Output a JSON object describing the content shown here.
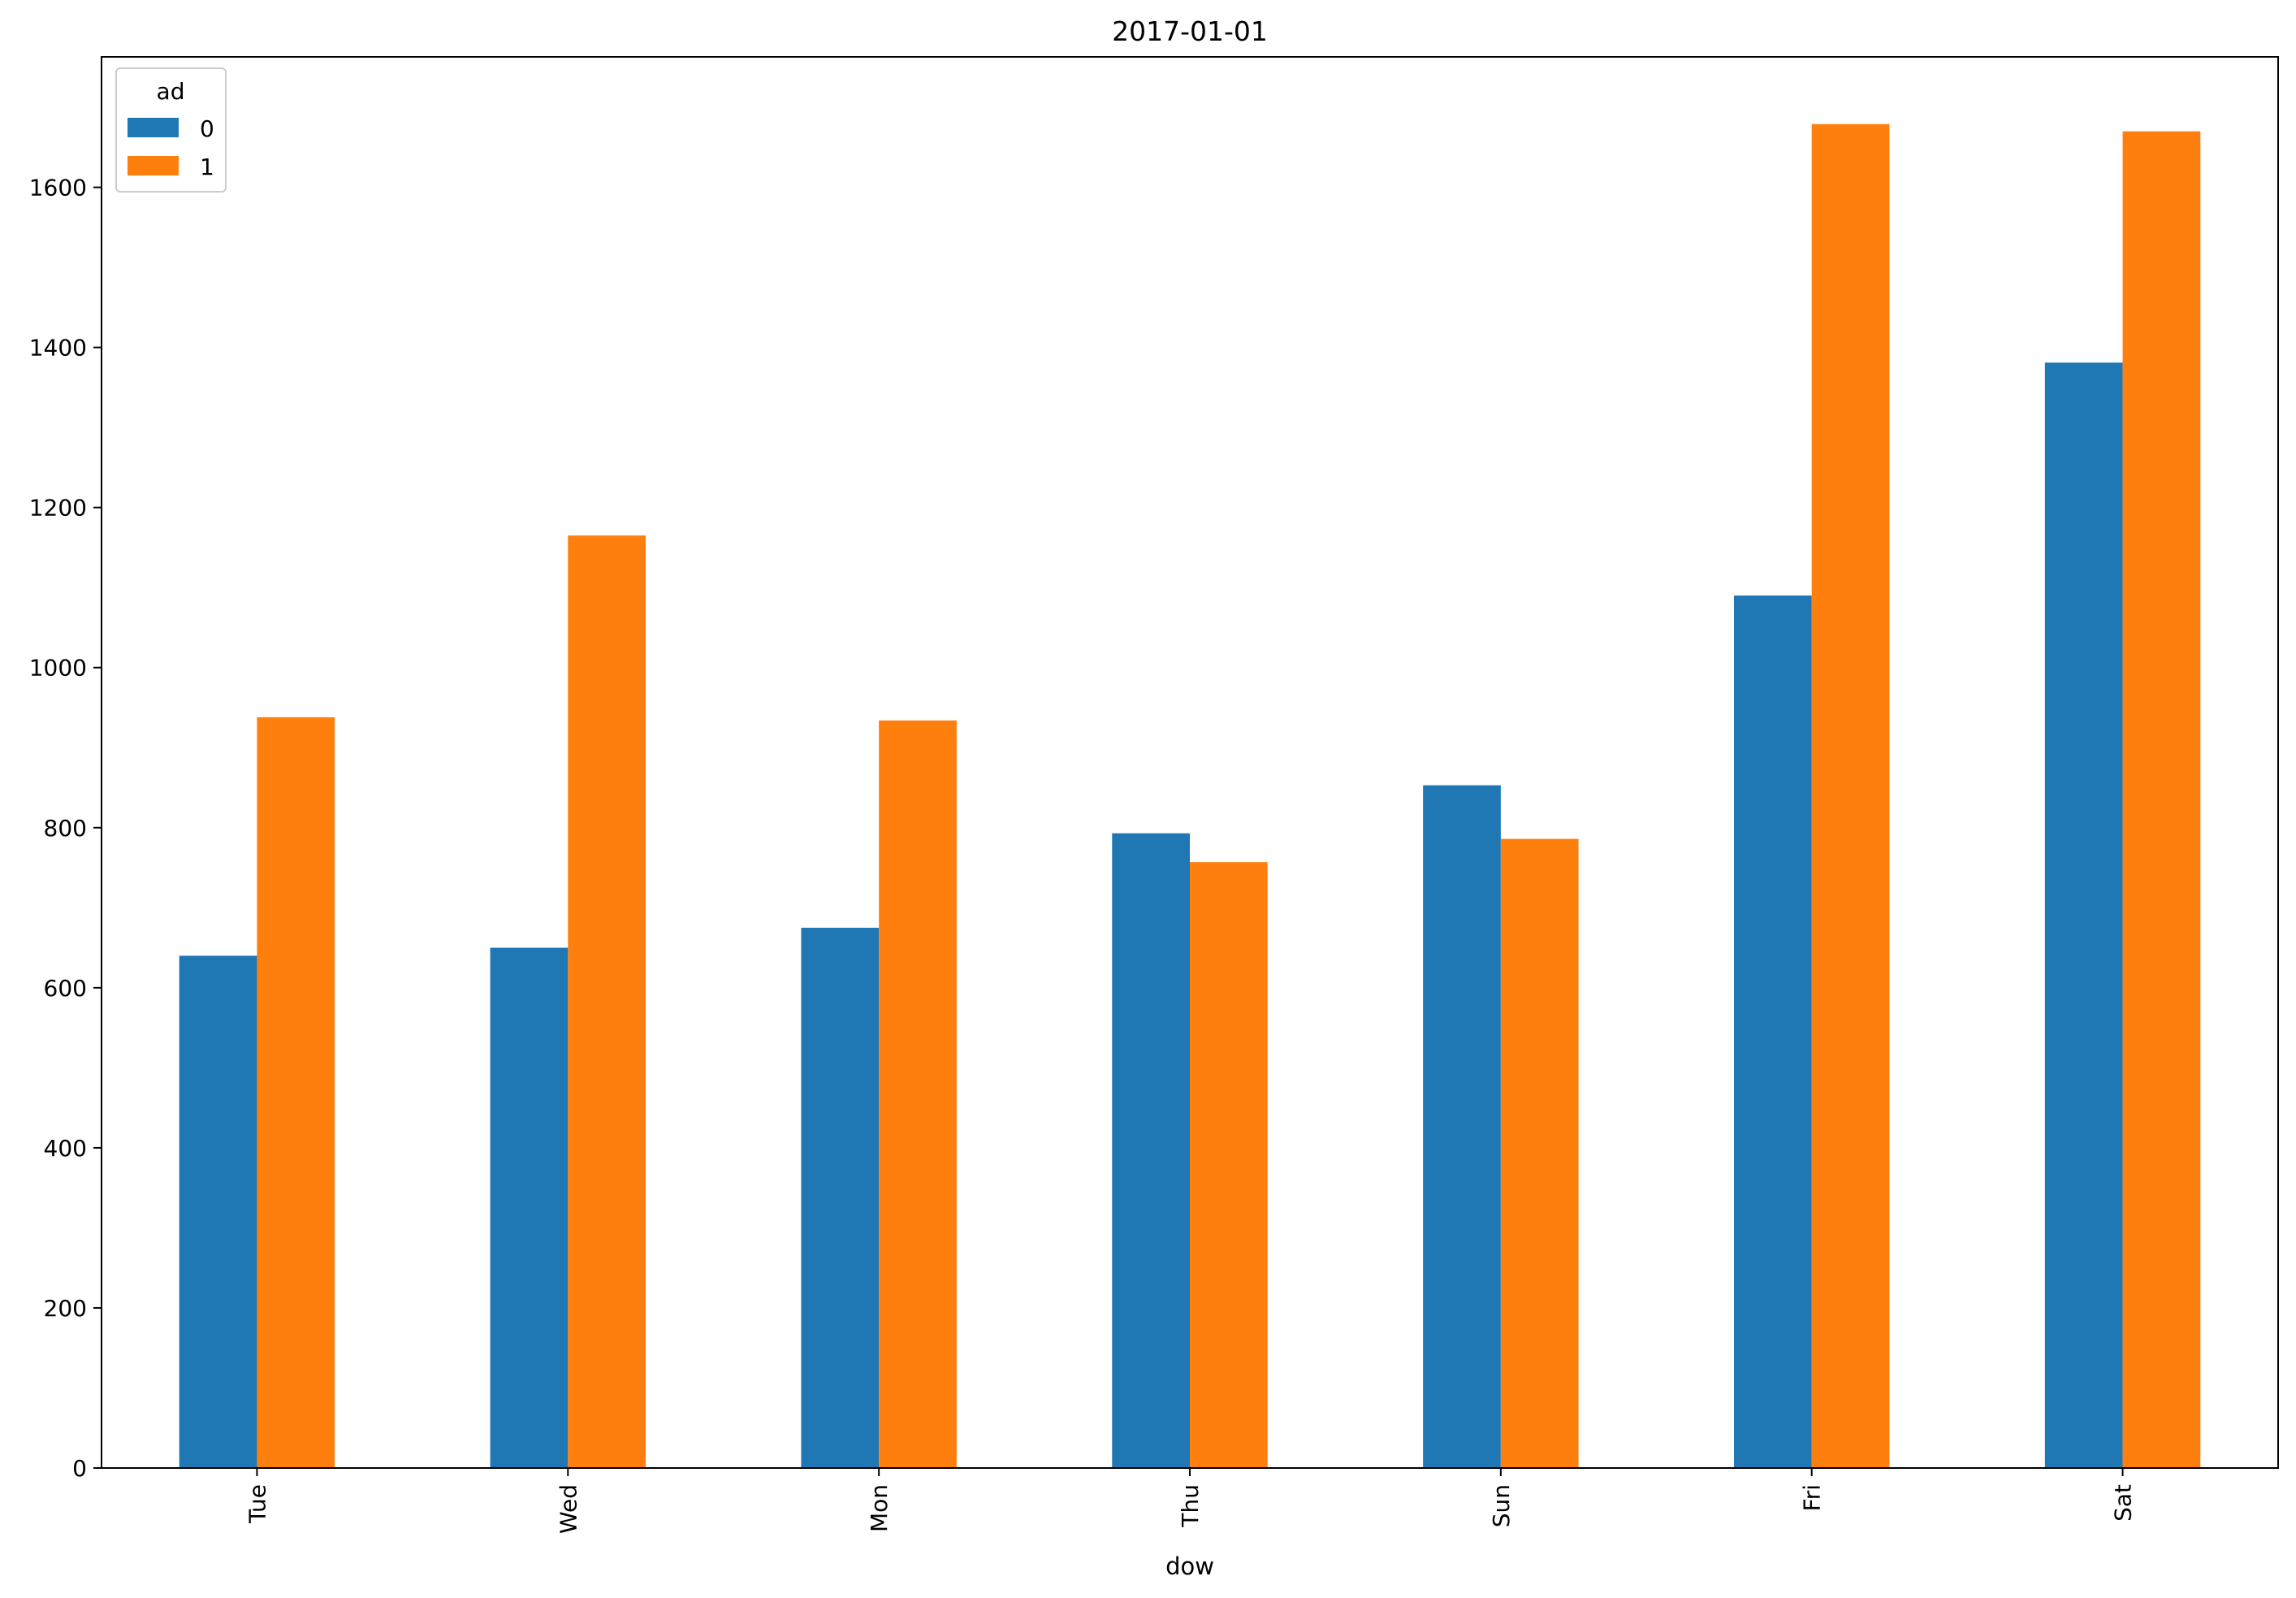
{
  "chart_data": {
    "type": "bar",
    "title": "2017-01-01",
    "xlabel": "dow",
    "ylabel": "",
    "categories": [
      "Tue",
      "Wed",
      "Mon",
      "Thu",
      "Sun",
      "Fri",
      "Sat"
    ],
    "series": [
      {
        "name": "0",
        "color": "#1f77b4",
        "values": [
          640,
          650,
          675,
          793,
          853,
          1090,
          1381
        ]
      },
      {
        "name": "1",
        "color": "#ff7f0e",
        "values": [
          938,
          1165,
          934,
          757,
          786,
          1679,
          1670
        ]
      }
    ],
    "ylim": [
      0,
      1763
    ],
    "yticks": [
      0,
      200,
      400,
      600,
      800,
      1000,
      1200,
      1400,
      1600
    ],
    "legend": {
      "title": "ad",
      "position": "top-left"
    },
    "grid": false
  }
}
